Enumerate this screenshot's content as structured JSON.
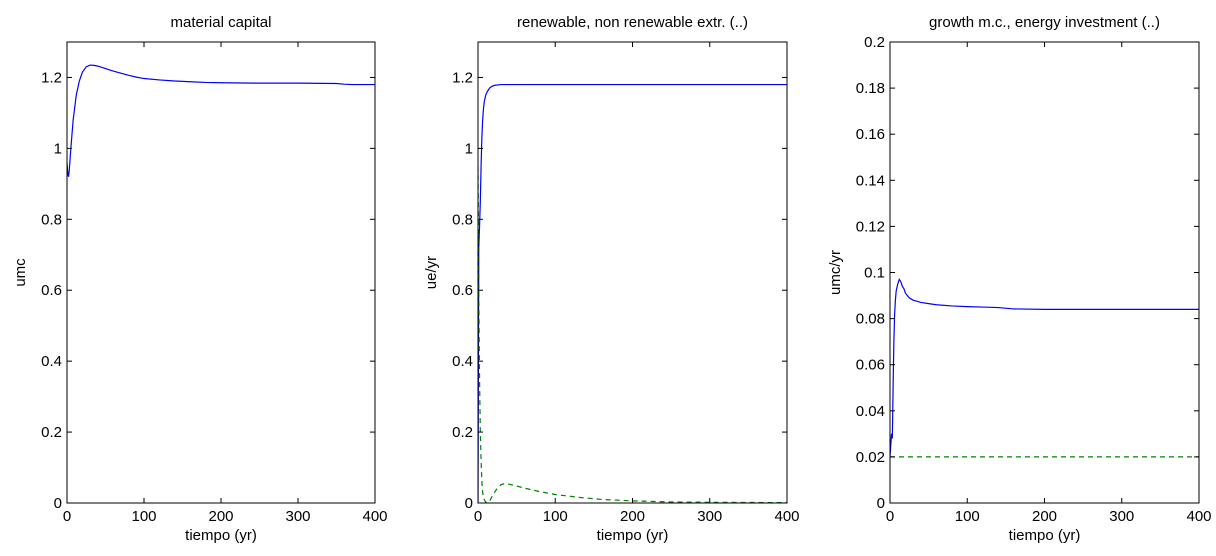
{
  "chart_data": [
    {
      "type": "line",
      "title": "material capital",
      "xlabel": "tiempo (yr)",
      "ylabel": "umc",
      "xlim": [
        0,
        400
      ],
      "ylim": [
        0,
        1.3
      ],
      "xticks": [
        "0",
        "100",
        "200",
        "300",
        "400"
      ],
      "yticks": [
        "0",
        "0.2",
        "0.4",
        "0.6",
        "0.8",
        "1",
        "1.2"
      ],
      "grid": false,
      "series": [
        {
          "color": "#0000ff",
          "style": "solid",
          "x": [
            0,
            1,
            2,
            3,
            5,
            8,
            12,
            16,
            20,
            25,
            30,
            35,
            40,
            50,
            60,
            70,
            80,
            90,
            100,
            120,
            140,
            160,
            180,
            200,
            250,
            300,
            350,
            360,
            370,
            400
          ],
          "y": [
            0.96,
            0.93,
            0.92,
            0.94,
            1.0,
            1.08,
            1.15,
            1.19,
            1.215,
            1.23,
            1.235,
            1.234,
            1.232,
            1.225,
            1.218,
            1.212,
            1.206,
            1.201,
            1.197,
            1.193,
            1.19,
            1.188,
            1.186,
            1.185,
            1.184,
            1.184,
            1.183,
            1.181,
            1.18,
            1.18
          ]
        }
      ]
    },
    {
      "type": "line",
      "title": "renewable, non renewable extr. (..)",
      "xlabel": "tiempo (yr)",
      "ylabel": "ue/yr",
      "xlim": [
        0,
        400
      ],
      "ylim": [
        0,
        1.3
      ],
      "xticks": [
        "0",
        "100",
        "200",
        "300",
        "400"
      ],
      "yticks": [
        "0",
        "0.2",
        "0.4",
        "0.6",
        "0.8",
        "1",
        "1.2"
      ],
      "grid": false,
      "series": [
        {
          "color": "#0000ff",
          "style": "solid",
          "x": [
            0,
            1,
            2,
            3,
            4,
            5,
            6,
            7,
            8,
            10,
            12,
            15,
            18,
            22,
            26,
            30,
            35,
            40,
            60,
            100,
            200,
            300,
            400
          ],
          "y": [
            0.0,
            0.72,
            0.78,
            0.85,
            0.95,
            1.03,
            1.08,
            1.11,
            1.13,
            1.15,
            1.16,
            1.17,
            1.175,
            1.178,
            1.179,
            1.18,
            1.18,
            1.18,
            1.18,
            1.18,
            1.18,
            1.18,
            1.18
          ]
        },
        {
          "color": "#008000",
          "style": "dashed",
          "x": [
            0,
            1,
            2,
            3,
            4,
            5,
            6,
            8,
            10,
            12,
            15,
            20,
            25,
            30,
            35,
            40,
            50,
            60,
            80,
            100,
            130,
            160,
            200,
            250,
            300,
            400
          ],
          "y": [
            0.95,
            0.6,
            0.35,
            0.2,
            0.12,
            0.06,
            0.03,
            0.01,
            0.002,
            0.0,
            0.005,
            0.025,
            0.042,
            0.052,
            0.055,
            0.053,
            0.048,
            0.042,
            0.032,
            0.024,
            0.016,
            0.01,
            0.006,
            0.003,
            0.002,
            0.001
          ]
        }
      ]
    },
    {
      "type": "line",
      "title": "growth m.c., energy investment (..)",
      "xlabel": "tiempo (yr)",
      "ylabel": "umc/yr",
      "xlim": [
        0,
        400
      ],
      "ylim": [
        0,
        0.2
      ],
      "xticks": [
        "0",
        "100",
        "200",
        "300",
        "400"
      ],
      "yticks": [
        "0",
        "0.02",
        "0.04",
        "0.06",
        "0.08",
        "0.1",
        "0.12",
        "0.14",
        "0.16",
        "0.18",
        "0.2"
      ],
      "grid": false,
      "series": [
        {
          "color": "#0000ff",
          "style": "solid",
          "x": [
            0,
            1,
            2,
            3,
            4,
            5,
            6,
            7,
            8,
            10,
            12,
            14,
            16,
            18,
            20,
            25,
            30,
            40,
            50,
            60,
            80,
            100,
            120,
            140,
            160,
            200,
            300,
            400
          ],
          "y": [
            0.02,
            0.025,
            0.03,
            0.028,
            0.05,
            0.07,
            0.082,
            0.088,
            0.092,
            0.095,
            0.097,
            0.096,
            0.094,
            0.093,
            0.091,
            0.089,
            0.088,
            0.087,
            0.0865,
            0.086,
            0.0855,
            0.0852,
            0.085,
            0.0848,
            0.0842,
            0.084,
            0.084,
            0.084
          ]
        },
        {
          "color": "#008000",
          "style": "dashed",
          "x": [
            0,
            2,
            5,
            10,
            50,
            100,
            200,
            300,
            400
          ],
          "y": [
            0.02,
            0.02,
            0.02,
            0.02,
            0.02,
            0.02,
            0.02,
            0.02,
            0.02
          ]
        }
      ]
    }
  ]
}
